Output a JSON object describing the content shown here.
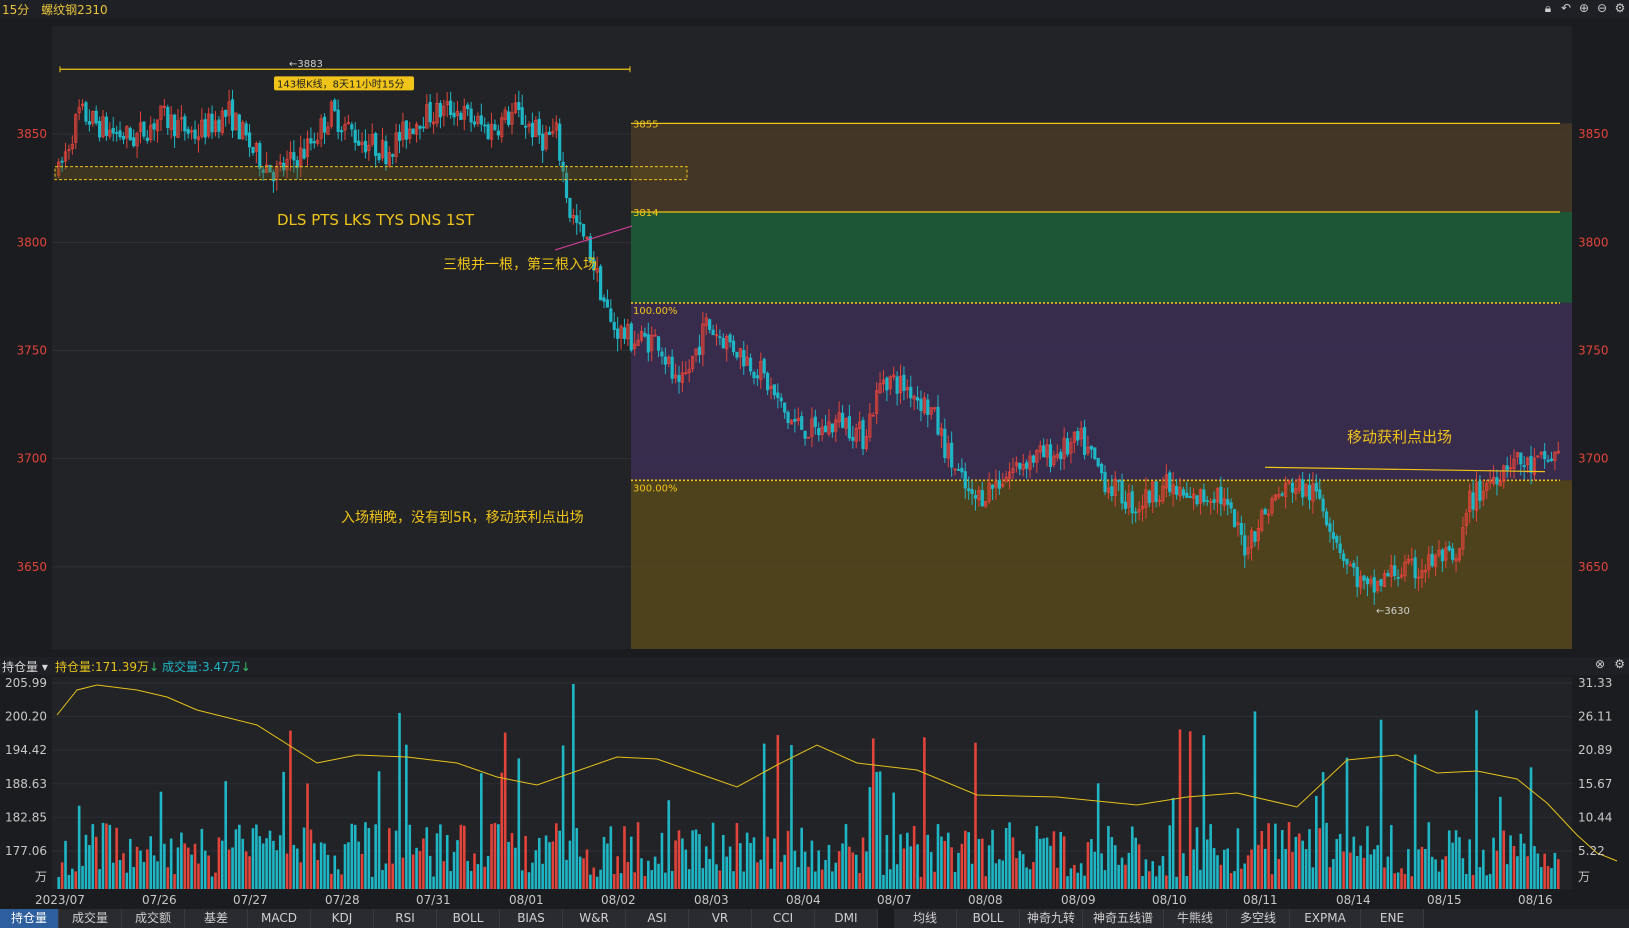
{
  "header": {
    "timeframe": "15分",
    "instrument": "螺纹钢2310",
    "icons": [
      "lock-icon",
      "undo-icon",
      "zoom-in-icon",
      "zoom-out-icon",
      "settings-icon"
    ]
  },
  "price_axis": {
    "labels": [
      "3850",
      "3800",
      "3750",
      "3700",
      "3650"
    ],
    "values": [
      3850,
      3800,
      3750,
      3700,
      3650
    ],
    "min": 3612,
    "max": 3900
  },
  "annotations": {
    "high_label": "←3883",
    "count_label": "143根K线，8天11小时15分",
    "pattern_label": "DLS PTS LKS TYS DNS 1ST",
    "entry_note": "三根并一根，第三根入场",
    "late_note": "入场稍晚，没有到5R，移动获利点出场",
    "trail_note": "移动获利点出场",
    "level_3855": "3855",
    "level_3814": "3814",
    "pct_100": "100.00%",
    "pct_300": "300.00%",
    "low_label": "←3630"
  },
  "levels": {
    "top": 3855,
    "entry": 3814,
    "r1": 3772,
    "r3": 3690,
    "bottom": 3612
  },
  "indicator_bar": {
    "selector": "持仓量",
    "oi_label": "持仓量:171.39万",
    "vol_label": "成交量:3.47万"
  },
  "volume_axis": {
    "left": [
      "205.99",
      "200.20",
      "194.42",
      "188.63",
      "182.85",
      "177.06",
      "万"
    ],
    "right": [
      "31.33",
      "26.11",
      "20.89",
      "15.67",
      "10.44",
      "5.22",
      "万"
    ]
  },
  "date_labels": [
    "2023/07",
    "07/26",
    "07/27",
    "07/28",
    "07/31",
    "08/01",
    "08/02",
    "08/03",
    "08/04",
    "08/07",
    "08/08",
    "08/09",
    "08/10",
    "08/11",
    "08/14",
    "08/15",
    "08/16"
  ],
  "tabs_left": [
    "持仓量",
    "成交量",
    "成交额",
    "基差",
    "MACD",
    "KDJ",
    "RSI",
    "BOLL",
    "BIAS",
    "W&R",
    "ASI",
    "VR",
    "CCI",
    "DMI"
  ],
  "tabs_right": [
    "均线",
    "BOLL",
    "神奇九转",
    "神奇五线谱",
    "牛熊线",
    "多空线",
    "EXPMA",
    "ENE"
  ],
  "colors": {
    "up": "#e0443a",
    "down": "#1fb6c5",
    "text_yellow": "#f0c419",
    "oi_line": "#e6c21a"
  },
  "chart_data": {
    "type": "candlestick",
    "title": "",
    "ylim": [
      3612,
      3900
    ],
    "anchors": [
      {
        "i": 0,
        "p": 3832
      },
      {
        "i": 6,
        "p": 3860
      },
      {
        "i": 14,
        "p": 3852
      },
      {
        "i": 22,
        "p": 3848
      },
      {
        "i": 30,
        "p": 3858
      },
      {
        "i": 40,
        "p": 3850
      },
      {
        "i": 50,
        "p": 3860
      },
      {
        "i": 58,
        "p": 3840
      },
      {
        "i": 64,
        "p": 3832
      },
      {
        "i": 72,
        "p": 3842
      },
      {
        "i": 80,
        "p": 3860
      },
      {
        "i": 88,
        "p": 3848
      },
      {
        "i": 96,
        "p": 3842
      },
      {
        "i": 106,
        "p": 3858
      },
      {
        "i": 116,
        "p": 3862
      },
      {
        "i": 126,
        "p": 3852
      },
      {
        "i": 134,
        "p": 3860
      },
      {
        "i": 142,
        "p": 3848
      },
      {
        "i": 146,
        "p": 3850
      },
      {
        "i": 150,
        "p": 3814
      },
      {
        "i": 156,
        "p": 3795
      },
      {
        "i": 162,
        "p": 3762
      },
      {
        "i": 168,
        "p": 3755
      },
      {
        "i": 176,
        "p": 3755
      },
      {
        "i": 182,
        "p": 3730
      },
      {
        "i": 190,
        "p": 3762
      },
      {
        "i": 198,
        "p": 3752
      },
      {
        "i": 206,
        "p": 3740
      },
      {
        "i": 214,
        "p": 3718
      },
      {
        "i": 222,
        "p": 3712
      },
      {
        "i": 230,
        "p": 3718
      },
      {
        "i": 236,
        "p": 3710
      },
      {
        "i": 242,
        "p": 3738
      },
      {
        "i": 250,
        "p": 3732
      },
      {
        "i": 256,
        "p": 3722
      },
      {
        "i": 262,
        "p": 3698
      },
      {
        "i": 268,
        "p": 3680
      },
      {
        "i": 276,
        "p": 3690
      },
      {
        "i": 284,
        "p": 3700
      },
      {
        "i": 292,
        "p": 3702
      },
      {
        "i": 300,
        "p": 3708
      },
      {
        "i": 308,
        "p": 3688
      },
      {
        "i": 316,
        "p": 3678
      },
      {
        "i": 324,
        "p": 3688
      },
      {
        "i": 332,
        "p": 3680
      },
      {
        "i": 340,
        "p": 3685
      },
      {
        "i": 348,
        "p": 3660
      },
      {
        "i": 356,
        "p": 3680
      },
      {
        "i": 362,
        "p": 3688
      },
      {
        "i": 370,
        "p": 3682
      },
      {
        "i": 378,
        "p": 3652
      },
      {
        "i": 384,
        "p": 3638
      },
      {
        "i": 392,
        "p": 3648
      },
      {
        "i": 398,
        "p": 3648
      },
      {
        "i": 406,
        "p": 3655
      },
      {
        "i": 410,
        "p": 3650
      },
      {
        "i": 414,
        "p": 3680
      },
      {
        "i": 420,
        "p": 3690
      },
      {
        "i": 426,
        "p": 3700
      },
      {
        "i": 432,
        "p": 3696
      },
      {
        "i": 440,
        "p": 3702
      }
    ],
    "bar_count": 441,
    "oi_range": [
      171.39,
      205.99
    ],
    "volume_range": [
      0,
      31.33
    ]
  }
}
